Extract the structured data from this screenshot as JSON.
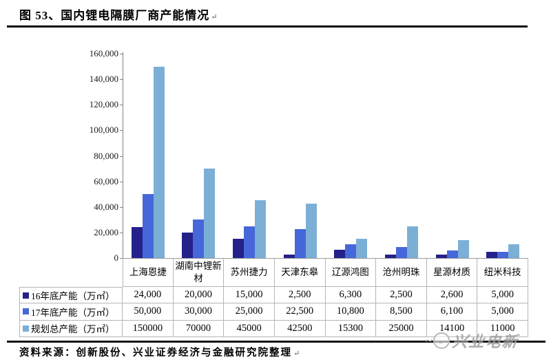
{
  "figure": {
    "title": "图 53、国内锂电隔膜厂商产能情况",
    "title_mark": "↵",
    "source": "资料来源：创新股份、兴业证券经济与金融研究院整理",
    "source_mark": "↵",
    "watermark": "兴业电新",
    "watermark_squiggle": "~"
  },
  "chart_data": {
    "type": "bar",
    "title": "国内锂电隔膜厂商产能情况",
    "categories": [
      "上海恩捷",
      "湖南中锂新材",
      "苏州捷力",
      "天津东皋",
      "辽源鸿图",
      "沧州明珠",
      "星源材质",
      "纽米科技"
    ],
    "series": [
      {
        "name": "16年底产能（万㎡）",
        "color": "#24218a",
        "values": [
          24000,
          20000,
          15000,
          2500,
          6300,
          2500,
          2600,
          5000
        ],
        "display": [
          "24,000",
          "20,000",
          "15,000",
          "2,500",
          "6,300",
          "2,500",
          "2,600",
          "5,000"
        ]
      },
      {
        "name": "17年底产能（万㎡）",
        "color": "#4667d9",
        "values": [
          50000,
          30000,
          25000,
          22500,
          10800,
          8500,
          6100,
          5000
        ],
        "display": [
          "50,000",
          "30,000",
          "25,000",
          "22,500",
          "10,800",
          "8,500",
          "6,100",
          "5,000"
        ]
      },
      {
        "name": "规划总产能（万㎡）",
        "color": "#7cafd6",
        "values": [
          150000,
          70000,
          45000,
          42500,
          15300,
          25000,
          14100,
          11000
        ],
        "display": [
          "150000",
          "70000",
          "45000",
          "42500",
          "15300",
          "25000",
          "14100",
          "11000"
        ]
      }
    ],
    "xlabel": "",
    "ylabel": "",
    "ylim": [
      0,
      160000
    ],
    "ytick_step": 20000,
    "ytick_labels": [
      "0",
      "20,000",
      "40,000",
      "60,000",
      "80,000",
      "100,000",
      "120,000",
      "140,000",
      "160,000"
    ],
    "grid": false,
    "legend_position": "data-table-below"
  }
}
